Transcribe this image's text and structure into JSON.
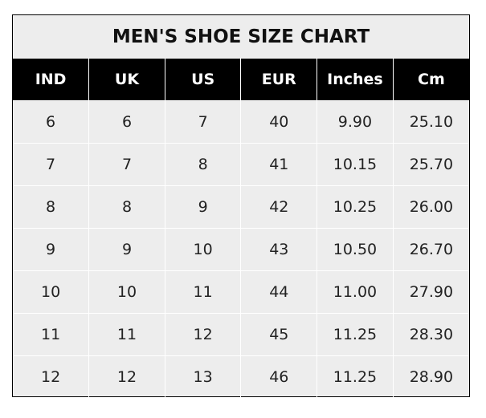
{
  "chart_data": {
    "type": "table",
    "title": "MEN'S SHOE SIZE CHART",
    "columns": [
      "IND",
      "UK",
      "US",
      "EUR",
      "Inches",
      "Cm"
    ],
    "rows": [
      [
        "6",
        "6",
        "7",
        "40",
        "9.90",
        "25.10"
      ],
      [
        "7",
        "7",
        "8",
        "41",
        "10.15",
        "25.70"
      ],
      [
        "8",
        "8",
        "9",
        "42",
        "10.25",
        "26.00"
      ],
      [
        "9",
        "9",
        "10",
        "43",
        "10.50",
        "26.70"
      ],
      [
        "10",
        "10",
        "11",
        "44",
        "11.00",
        "27.90"
      ],
      [
        "11",
        "11",
        "12",
        "45",
        "11.25",
        "28.30"
      ],
      [
        "12",
        "12",
        "13",
        "46",
        "11.25",
        "28.90"
      ]
    ],
    "colors": {
      "header_bg": "#000000",
      "header_text": "#ffffff",
      "cell_bg": "#ededed",
      "grid": "#ffffff"
    }
  }
}
